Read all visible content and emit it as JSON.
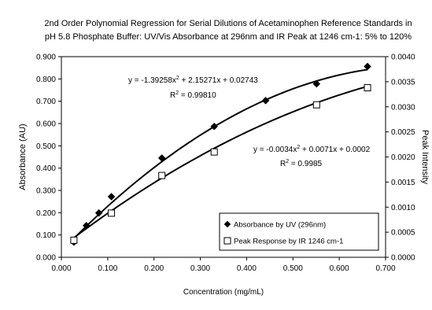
{
  "chart_data": {
    "type": "scatter",
    "title_lines": [
      "2nd Order Polynomial Regression for Serial Dilutions of Acetaminophen Reference Standards in",
      "pH 5.8 Phosphate Buffer: UV/Vis Absorbance at 296nm and IR Peak at 1246 cm-1: 5% to 120%"
    ],
    "xlabel": "Concentration (mg/mL)",
    "ylabel": "Absorbance (AU)",
    "y2label": "Peak Intensity",
    "xlim": [
      0,
      0.7
    ],
    "ylim": [
      0,
      0.9
    ],
    "y2lim": [
      0,
      0.004
    ],
    "x_ticks": [
      "0.000",
      "0.100",
      "0.200",
      "0.300",
      "0.400",
      "0.500",
      "0.600",
      "0.700"
    ],
    "y_ticks": [
      "0.000",
      "0.100",
      "0.200",
      "0.300",
      "0.400",
      "0.500",
      "0.600",
      "0.700",
      "0.800",
      "0.900"
    ],
    "y2_ticks": [
      "0.0000",
      "0.0005",
      "0.0010",
      "0.0015",
      "0.0020",
      "0.0025",
      "0.0030",
      "0.0035",
      "0.0040"
    ],
    "grid": false,
    "legend_position": "bottom-right",
    "series": [
      {
        "name": "Absorbance by UV (296nm)",
        "axis": "left",
        "marker": "diamond",
        "x": [
          0.027,
          0.054,
          0.081,
          0.108,
          0.217,
          0.33,
          0.441,
          0.551,
          0.661
        ],
        "y": [
          0.068,
          0.142,
          0.199,
          0.272,
          0.445,
          0.587,
          0.703,
          0.778,
          0.856
        ],
        "trend": {
          "a": -1.39258,
          "b": 2.15271,
          "c": 0.02743
        },
        "equation": "y = -1.39258x",
        "equation_tail": " + 2.15271x + 0.02743",
        "r2_label": "R",
        "r2_value": " = 0.99810"
      },
      {
        "name": "Peak Response by IR 1246 cm-1",
        "axis": "right",
        "marker": "square",
        "x": [
          0.027,
          0.108,
          0.217,
          0.33,
          0.551,
          0.661
        ],
        "y": [
          0.00034,
          0.00088,
          0.00163,
          0.0021,
          0.00304,
          0.00338
        ],
        "trend": {
          "a": -0.0034,
          "b": 0.0071,
          "c": 0.0002
        },
        "equation": "y = -0.0034x",
        "equation_tail": " + 0.0071x + 0.0002",
        "r2_label": "R",
        "r2_value": " = 0.9985"
      }
    ],
    "superscript": "2"
  }
}
